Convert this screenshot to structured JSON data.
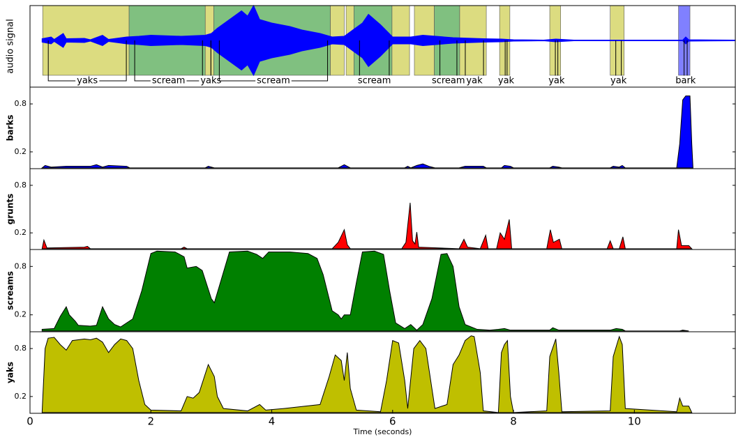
{
  "chart_data": [
    {
      "type": "segments",
      "ylabel": "audio signal",
      "xlim": [
        0,
        11.67
      ],
      "ylim": [
        -1.34,
        1
      ],
      "envelope": {
        "color": "#0000ff",
        "x": [
          0.2,
          0.35,
          0.4,
          0.55,
          0.6,
          0.9,
          1.0,
          1.2,
          1.3,
          1.6,
          1.8,
          2.0,
          2.5,
          2.9,
          3.0,
          3.1,
          3.3,
          3.5,
          3.6,
          3.7,
          3.8,
          4.0,
          4.3,
          4.5,
          4.8,
          5.0,
          5.2,
          5.5,
          5.6,
          5.8,
          6.0,
          6.3,
          6.5,
          7.0,
          7.5,
          7.8,
          8.0,
          8.5,
          8.7,
          9.0,
          10.8,
          10.85,
          10.9,
          11.67
        ],
        "values": [
          0.05,
          0.1,
          0.03,
          0.2,
          0.05,
          0.06,
          0.02,
          0.15,
          0.03,
          0.1,
          0.12,
          0.15,
          0.12,
          0.15,
          0.2,
          0.35,
          0.6,
          0.85,
          0.7,
          1.0,
          0.6,
          0.5,
          0.4,
          0.3,
          0.2,
          0.1,
          0.12,
          0.5,
          0.75,
          0.45,
          0.1,
          0.1,
          0.15,
          0.08,
          0.05,
          0.04,
          0.02,
          0.01,
          0.04,
          0.01,
          0.01,
          0.1,
          0.02,
          0.01
        ]
      },
      "segments": [
        {
          "start": 0.21,
          "end": 1.64,
          "label": "yaks",
          "color": "#dcdc80"
        },
        {
          "start": 1.64,
          "end": 2.9,
          "label": "scream",
          "color": "#80c080"
        },
        {
          "start": 2.9,
          "end": 3.04,
          "label": "yaks",
          "color": "#dcdc80"
        },
        {
          "start": 3.04,
          "end": 4.97,
          "label": "scream",
          "color": "#80c080"
        },
        {
          "start": 4.97,
          "end": 5.2,
          "label": null,
          "color": "#dcdc80"
        },
        {
          "start": 5.23,
          "end": 5.36,
          "label": null,
          "color": "#dcdc80"
        },
        {
          "start": 5.36,
          "end": 5.99,
          "label": "scream",
          "color": "#80c080"
        },
        {
          "start": 5.99,
          "end": 6.28,
          "label": null,
          "color": "#dcdc80"
        },
        {
          "start": 6.36,
          "end": 6.69,
          "label": null,
          "color": "#dcdc80"
        },
        {
          "start": 6.69,
          "end": 7.11,
          "label": "scream",
          "color": "#80c080"
        },
        {
          "start": 7.11,
          "end": 7.55,
          "label": "yak",
          "color": "#dcdc80"
        },
        {
          "start": 7.77,
          "end": 7.94,
          "label": "yak",
          "color": "#dcdc80"
        },
        {
          "start": 8.6,
          "end": 8.78,
          "label": "yak",
          "color": "#dcdc80"
        },
        {
          "start": 9.6,
          "end": 9.83,
          "label": "yak",
          "color": "#dcdc80"
        },
        {
          "start": 10.73,
          "end": 10.92,
          "label": "bark",
          "color": "#8080ff"
        }
      ]
    },
    {
      "type": "area",
      "ylabel": "barks",
      "color": "#0000ff",
      "xlim": [
        0,
        11.67
      ],
      "ylim": [
        -0.01,
        1.01
      ],
      "yticks": [
        0.2,
        0.8
      ],
      "x": [
        0.2,
        0.25,
        0.35,
        0.6,
        1.0,
        1.1,
        1.2,
        1.3,
        1.6,
        1.65,
        2.9,
        2.95,
        3.05,
        5.1,
        5.2,
        5.3,
        6.2,
        6.25,
        6.3,
        6.4,
        6.5,
        6.6,
        6.7,
        7.1,
        7.2,
        7.5,
        7.55,
        7.8,
        7.85,
        7.95,
        8.0,
        8.6,
        8.65,
        8.75,
        8.8,
        9.6,
        9.65,
        9.75,
        9.8,
        9.85,
        10.7,
        10.75,
        10.8,
        10.85,
        10.92,
        10.95,
        10.97
      ],
      "values": [
        0,
        0.03,
        0.01,
        0.02,
        0.02,
        0.04,
        0.01,
        0.03,
        0.02,
        0,
        0,
        0.02,
        0,
        0,
        0.04,
        0,
        0,
        0.02,
        0,
        0.03,
        0.05,
        0.02,
        0,
        0,
        0.02,
        0.02,
        0,
        0,
        0.03,
        0.02,
        0,
        0,
        0.02,
        0.01,
        0,
        0,
        0.02,
        0.01,
        0.03,
        0,
        0,
        0.3,
        0.85,
        0.9,
        0.9,
        0.3,
        0
      ]
    },
    {
      "type": "area",
      "ylabel": "grunts",
      "color": "#ff0000",
      "xlim": [
        0,
        11.67
      ],
      "ylim": [
        -0.01,
        1.01
      ],
      "yticks": [
        0.2,
        0.8
      ],
      "x": [
        0.2,
        0.23,
        0.28,
        0.9,
        0.95,
        1.0,
        2.5,
        2.55,
        2.6,
        5.0,
        5.1,
        5.2,
        5.25,
        5.3,
        6.15,
        6.22,
        6.29,
        6.33,
        6.37,
        6.4,
        6.43,
        7.1,
        7.18,
        7.24,
        7.45,
        7.54,
        7.58,
        7.72,
        7.78,
        7.85,
        7.93,
        7.97,
        8.55,
        8.61,
        8.66,
        8.76,
        8.8,
        9.55,
        9.6,
        9.65,
        9.75,
        9.81,
        9.85,
        10.7,
        10.73,
        10.78,
        10.9,
        10.95
      ],
      "values": [
        0,
        0.11,
        0.01,
        0.02,
        0.03,
        0,
        0,
        0.02,
        0,
        0,
        0.08,
        0.24,
        0.05,
        0,
        0,
        0.08,
        0.58,
        0.1,
        0.06,
        0.21,
        0.02,
        0,
        0.12,
        0.02,
        0,
        0.17,
        0,
        0,
        0.2,
        0.12,
        0.37,
        0,
        0,
        0.24,
        0.08,
        0.12,
        0,
        0,
        0.1,
        0,
        0,
        0.15,
        0,
        0,
        0.24,
        0.04,
        0.04,
        0
      ]
    },
    {
      "type": "area",
      "ylabel": "screams",
      "color": "#008000",
      "xlim": [
        0,
        11.67
      ],
      "ylim": [
        -0.01,
        1.01
      ],
      "yticks": [
        0.2,
        0.8
      ],
      "x": [
        0.2,
        0.4,
        0.5,
        0.6,
        0.65,
        0.75,
        0.8,
        1.0,
        1.1,
        1.2,
        1.3,
        1.4,
        1.5,
        1.7,
        1.85,
        2.0,
        2.1,
        2.4,
        2.55,
        2.6,
        2.75,
        2.85,
        3.0,
        3.05,
        3.15,
        3.3,
        3.6,
        3.75,
        3.85,
        3.95,
        4.3,
        4.6,
        4.75,
        4.85,
        4.95,
        5.0,
        5.1,
        5.15,
        5.2,
        5.3,
        5.4,
        5.5,
        5.7,
        5.85,
        5.95,
        6.05,
        6.2,
        6.3,
        6.4,
        6.5,
        6.65,
        6.8,
        6.9,
        7.0,
        7.1,
        7.2,
        7.4,
        7.6,
        7.75,
        7.85,
        7.95,
        8.6,
        8.65,
        8.75,
        9.6,
        9.7,
        9.8,
        9.85,
        10.75,
        10.8,
        10.9
      ],
      "values": [
        0.02,
        0.03,
        0.18,
        0.3,
        0.2,
        0.12,
        0.07,
        0.06,
        0.07,
        0.3,
        0.15,
        0.08,
        0.05,
        0.15,
        0.5,
        0.96,
        0.99,
        0.98,
        0.92,
        0.78,
        0.8,
        0.75,
        0.4,
        0.35,
        0.6,
        0.98,
        0.99,
        0.95,
        0.9,
        0.98,
        0.98,
        0.96,
        0.9,
        0.7,
        0.4,
        0.25,
        0.2,
        0.15,
        0.2,
        0.2,
        0.6,
        0.98,
        0.99,
        0.95,
        0.5,
        0.1,
        0.03,
        0.08,
        0.01,
        0.08,
        0.4,
        0.95,
        0.96,
        0.8,
        0.3,
        0.08,
        0.02,
        0.01,
        0.02,
        0.03,
        0.01,
        0.01,
        0.04,
        0.01,
        0.01,
        0.03,
        0.02,
        0,
        0,
        0.01,
        0
      ]
    },
    {
      "type": "area",
      "ylabel": "yaks",
      "color": "#bfbf00",
      "xlim": [
        0,
        11.67
      ],
      "ylim": [
        -0.01,
        1.01
      ],
      "yticks": [
        0.2,
        0.8
      ],
      "xticks": [
        0,
        2,
        4,
        6,
        8,
        10
      ],
      "xlabel": "Time (seconds)",
      "x": [
        0.2,
        0.25,
        0.3,
        0.4,
        0.5,
        0.6,
        0.7,
        0.9,
        1.0,
        1.1,
        1.2,
        1.3,
        1.4,
        1.5,
        1.6,
        1.7,
        1.8,
        1.9,
        2.0,
        2.5,
        2.6,
        2.7,
        2.8,
        2.95,
        3.05,
        3.1,
        3.2,
        3.6,
        3.8,
        3.9,
        4.2,
        4.8,
        4.95,
        5.05,
        5.15,
        5.2,
        5.25,
        5.3,
        5.4,
        5.8,
        5.9,
        6.0,
        6.1,
        6.2,
        6.25,
        6.35,
        6.45,
        6.55,
        6.65,
        6.7,
        6.9,
        7.0,
        7.1,
        7.2,
        7.3,
        7.35,
        7.45,
        7.5,
        7.75,
        7.8,
        7.85,
        7.9,
        7.95,
        8.0,
        8.55,
        8.6,
        8.7,
        8.75,
        8.8,
        9.6,
        9.65,
        9.75,
        9.8,
        9.85,
        10.7,
        10.75,
        10.8,
        10.9,
        10.95
      ],
      "values": [
        0,
        0.8,
        0.93,
        0.94,
        0.85,
        0.78,
        0.9,
        0.92,
        0.91,
        0.93,
        0.88,
        0.75,
        0.85,
        0.92,
        0.9,
        0.8,
        0.4,
        0.1,
        0.03,
        0.02,
        0.2,
        0.18,
        0.25,
        0.6,
        0.45,
        0.2,
        0.05,
        0.02,
        0.1,
        0.03,
        0.05,
        0.1,
        0.45,
        0.72,
        0.65,
        0.4,
        0.75,
        0.3,
        0.03,
        0.01,
        0.4,
        0.9,
        0.87,
        0.4,
        0.05,
        0.8,
        0.9,
        0.8,
        0.3,
        0.05,
        0.1,
        0.6,
        0.72,
        0.9,
        0.96,
        0.95,
        0.5,
        0.02,
        0,
        0.75,
        0.85,
        0.9,
        0.2,
        0,
        0.02,
        0.7,
        0.92,
        0.5,
        0.01,
        0.02,
        0.7,
        0.95,
        0.85,
        0.05,
        0.01,
        0.18,
        0.08,
        0.08,
        0
      ]
    }
  ]
}
